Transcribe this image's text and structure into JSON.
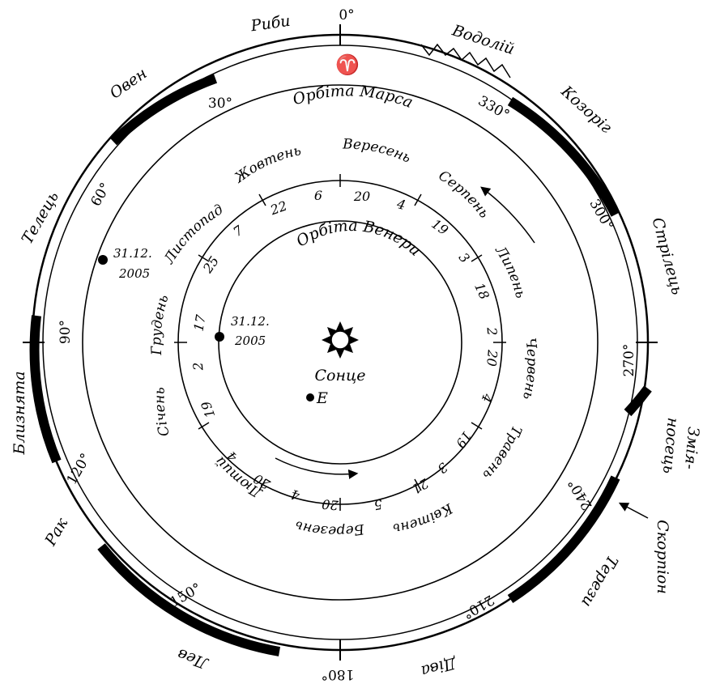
{
  "center_label": "Сонце",
  "earth_label": "E",
  "orbits": {
    "mars": "Орбіта Марса",
    "venus": "Орбіта Венери"
  },
  "aries_symbol": "♈",
  "zodiac": {
    "pisces": "Риби",
    "aquarius": "Водолій",
    "capricorn": "Козоріг",
    "sagittarius": "Стрілець",
    "ophiuchus_1": "Змія-",
    "ophiuchus_2": "носець",
    "scorpius": "Скорпіон",
    "libra": "Терези",
    "virgo": "Діва",
    "leo": "Лев",
    "cancer": "Рак",
    "gemini": "Близнята",
    "taurus": "Телець",
    "aries": "Овен"
  },
  "degrees": {
    "d0": "0°",
    "d30": "30°",
    "d60": "60°",
    "d90": "90°",
    "d120": "120°",
    "d150": "150°",
    "d180": "180°",
    "d210": "210°",
    "d240": "240°",
    "d270": "270°",
    "d300": "300°",
    "d330": "330°"
  },
  "months": {
    "sep": "Вересень",
    "aug": "Серпень",
    "jul": "Липень",
    "jun": "Червень",
    "may": "Травень",
    "apr": "Квітень",
    "mar": "Березень",
    "feb": "Лютий",
    "jan": "Січень",
    "dec": "Грудень",
    "nov": "Листопад",
    "oct": "Жовтень"
  },
  "days": {
    "d20a": "20",
    "d6": "6",
    "d22": "22",
    "d7": "7",
    "d25": "25",
    "d4a": "4",
    "d19a": "19",
    "d3a": "3",
    "d18": "18",
    "d2a": "2",
    "d20b": "20",
    "d4b": "4",
    "d19b": "19",
    "d3b": "3",
    "d21": "21",
    "d5": "5",
    "d20c": "20",
    "d4c": "4",
    "d20d": "20",
    "d4d": "4",
    "d19c": "19",
    "d2b": "2",
    "d17": "17"
  },
  "date_markers": {
    "mars_line1": "31.12.",
    "mars_line2": "2005",
    "venus_line1": "31.12.",
    "venus_line2": "2005"
  }
}
